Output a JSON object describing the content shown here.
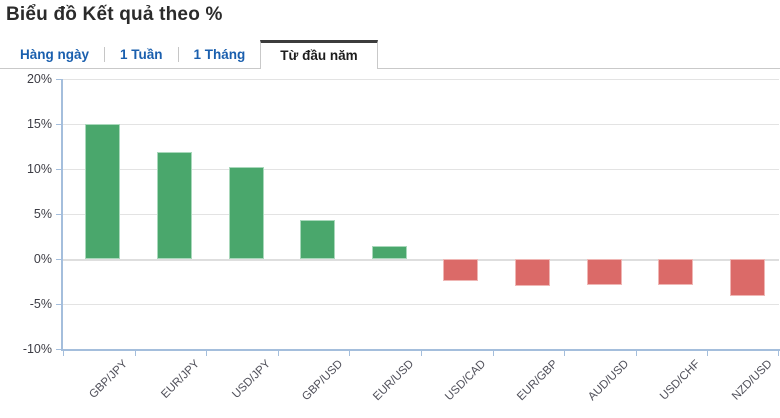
{
  "header": {
    "title": "Biểu đồ Kết quả theo %"
  },
  "tabs": [
    {
      "id": "daily",
      "label": "Hàng ngày",
      "active": false
    },
    {
      "id": "1-week",
      "label": "1 Tuần",
      "active": false
    },
    {
      "id": "1-month",
      "label": "1 Tháng",
      "active": false
    },
    {
      "id": "ytd",
      "label": "Từ đầu năm",
      "active": true
    }
  ],
  "colors": {
    "tab_link_blue": "#1a5fae",
    "active_tab_top_border": "#3c3c3c",
    "title_text": "#2b2b2b",
    "axis_blue": "#a4bedc",
    "gridline": "#e3e3e3"
  },
  "chart_data": {
    "type": "bar",
    "title": "Biểu đồ Kết quả theo %",
    "xlabel": "",
    "ylabel": "",
    "categories": [
      "GBP/JPY",
      "EUR/JPY",
      "USD/JPY",
      "GBP/USD",
      "EUR/USD",
      "USD/CAD",
      "EUR/GBP",
      "AUD/USD",
      "USD/CHF",
      "NZD/USD"
    ],
    "values": [
      15.0,
      11.9,
      10.2,
      4.3,
      1.4,
      -2.4,
      -3.0,
      -2.9,
      -2.9,
      -4.1
    ],
    "ylim": [
      -10,
      20
    ],
    "ytick_step": 5,
    "ytick_labels": [
      "20%",
      "15%",
      "10%",
      "5%",
      "0%",
      "-5%",
      "-10%"
    ],
    "grid": true,
    "legend": "none",
    "positive_color": "#4aa76c",
    "positive_border": "#a9d8bb",
    "negative_color": "#db6a68",
    "negative_border": "#efb6b4"
  }
}
